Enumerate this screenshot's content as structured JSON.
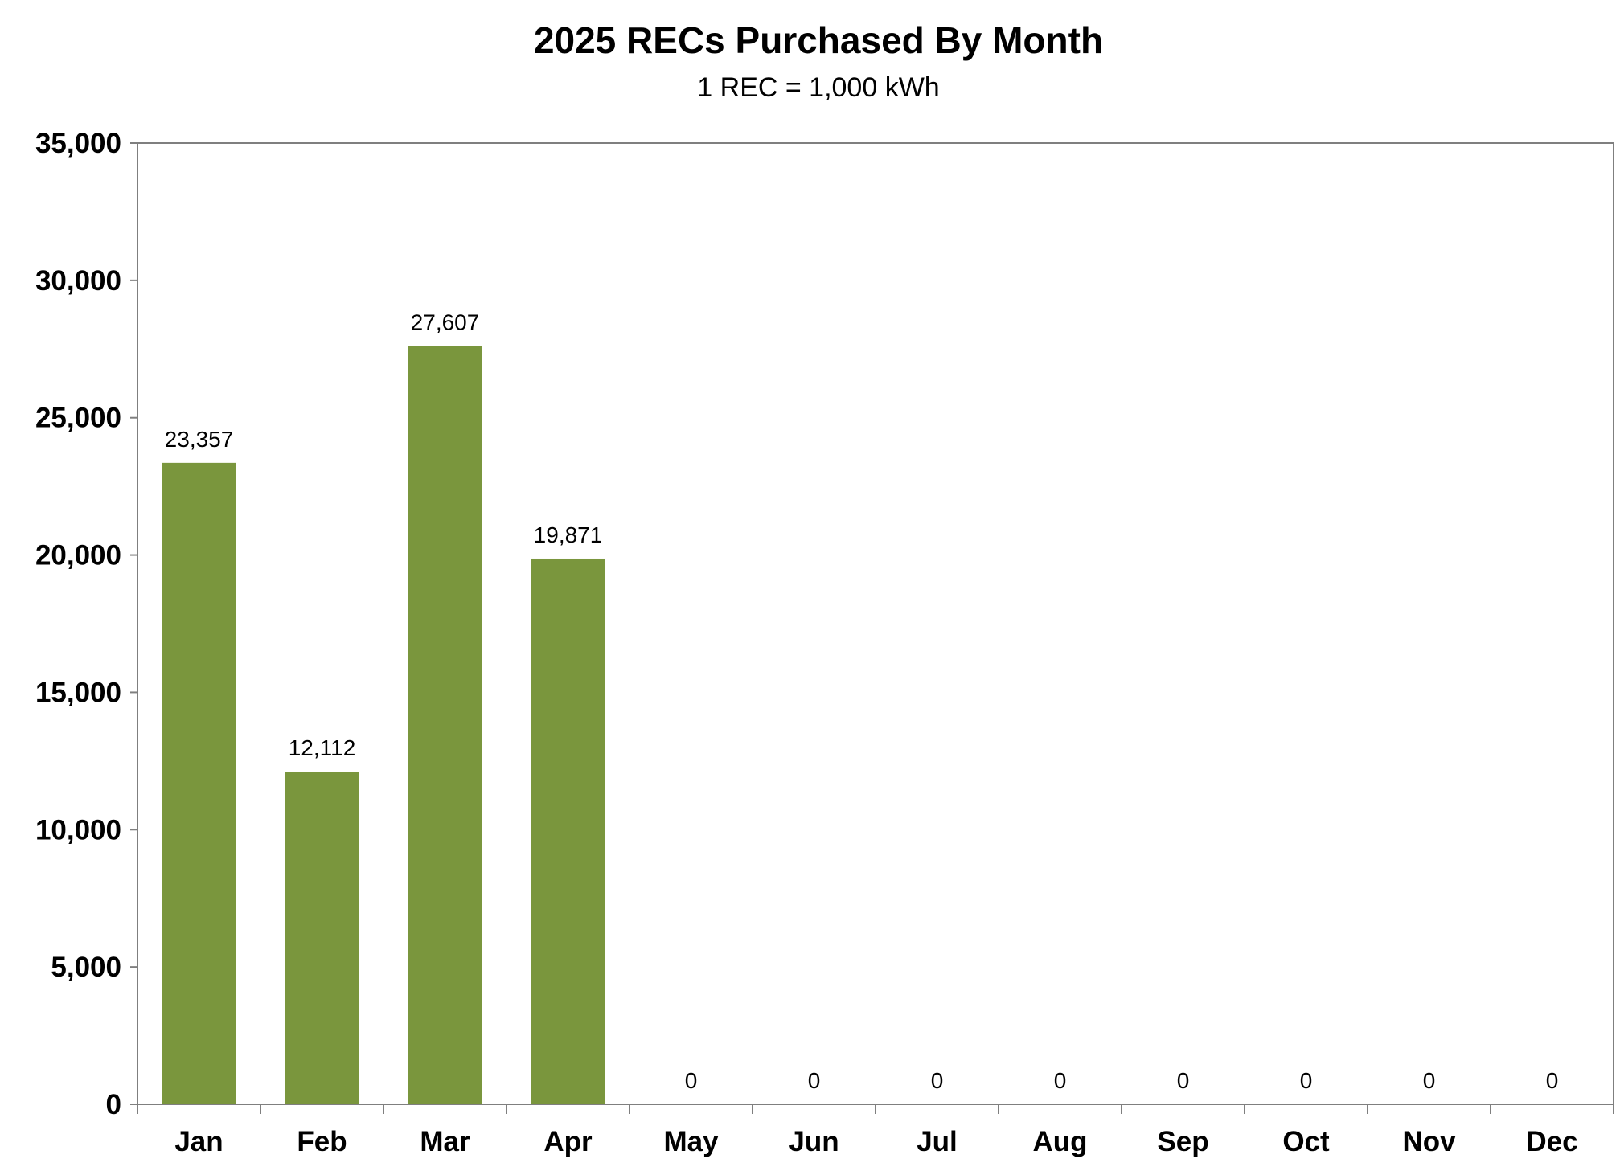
{
  "chart_data": {
    "type": "bar",
    "title": "2025 RECs Purchased By Month",
    "subtitle": "1 REC = 1,000 kWh",
    "xlabel": "",
    "ylabel": "",
    "categories": [
      "Jan",
      "Feb",
      "Mar",
      "Apr",
      "May",
      "Jun",
      "Jul",
      "Aug",
      "Sep",
      "Oct",
      "Nov",
      "Dec"
    ],
    "values": [
      23357,
      12112,
      27607,
      19871,
      0,
      0,
      0,
      0,
      0,
      0,
      0,
      0
    ],
    "data_labels": [
      "23,357",
      "12,112",
      "27,607",
      "19,871",
      "0",
      "0",
      "0",
      "0",
      "0",
      "0",
      "0",
      "0"
    ],
    "ylim": [
      0,
      35000
    ],
    "yticks": [
      0,
      5000,
      10000,
      15000,
      20000,
      25000,
      30000,
      35000
    ],
    "ytick_labels": [
      "0",
      "5,000",
      "10,000",
      "15,000",
      "20,000",
      "25,000",
      "30,000",
      "35,000"
    ],
    "grid": false,
    "legend": "none",
    "bar_color": "#7a963d",
    "axis_color": "#7f7f7f"
  }
}
